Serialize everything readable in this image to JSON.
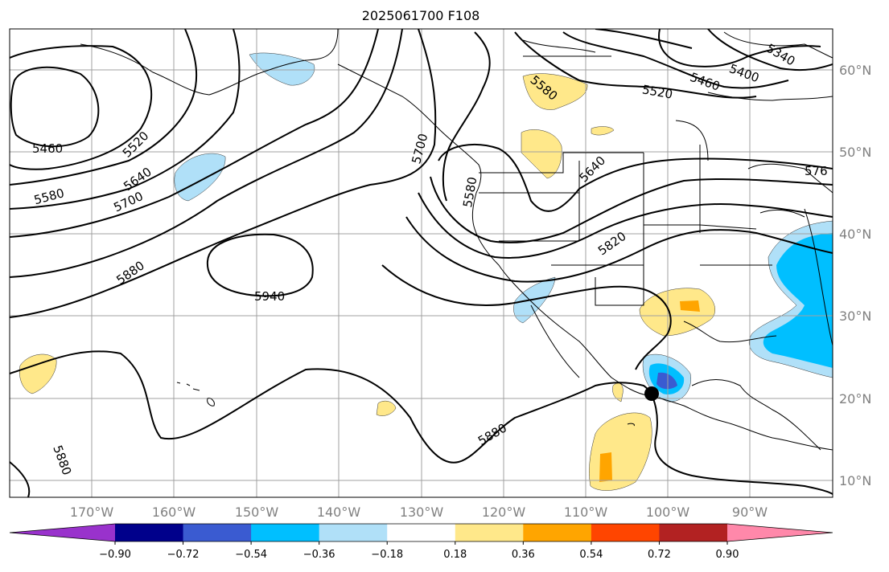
{
  "title": "2025061700 F108",
  "lat_labels": [
    "60°N",
    "50°N",
    "40°N",
    "30°N",
    "20°N",
    "10°N"
  ],
  "lon_labels": [
    "170°W",
    "160°W",
    "150°W",
    "140°W",
    "130°W",
    "120°W",
    "110°W",
    "100°W",
    "90°W"
  ],
  "contour_labels": [
    "5460",
    "5520",
    "5580",
    "5640",
    "5700",
    "5880",
    "5940",
    "5700",
    "5580",
    "5580",
    "5640",
    "5820",
    "5520",
    "5460",
    "5400",
    "5340",
    "576",
    "5880",
    "5880"
  ],
  "colorbar": {
    "ticks": [
      "−0.90",
      "−0.72",
      "−0.54",
      "−0.36",
      "−0.18",
      "0.18",
      "0.36",
      "0.54",
      "0.72",
      "0.90"
    ],
    "colors": [
      "#9932cc",
      "#00008b",
      "#3a5bd1",
      "#00bfff",
      "#b0e0f8",
      "#ffffff",
      "#ffe88a",
      "#ffa500",
      "#ff4500",
      "#b22222",
      "#ff88aa"
    ]
  },
  "marker": "location-dot"
}
